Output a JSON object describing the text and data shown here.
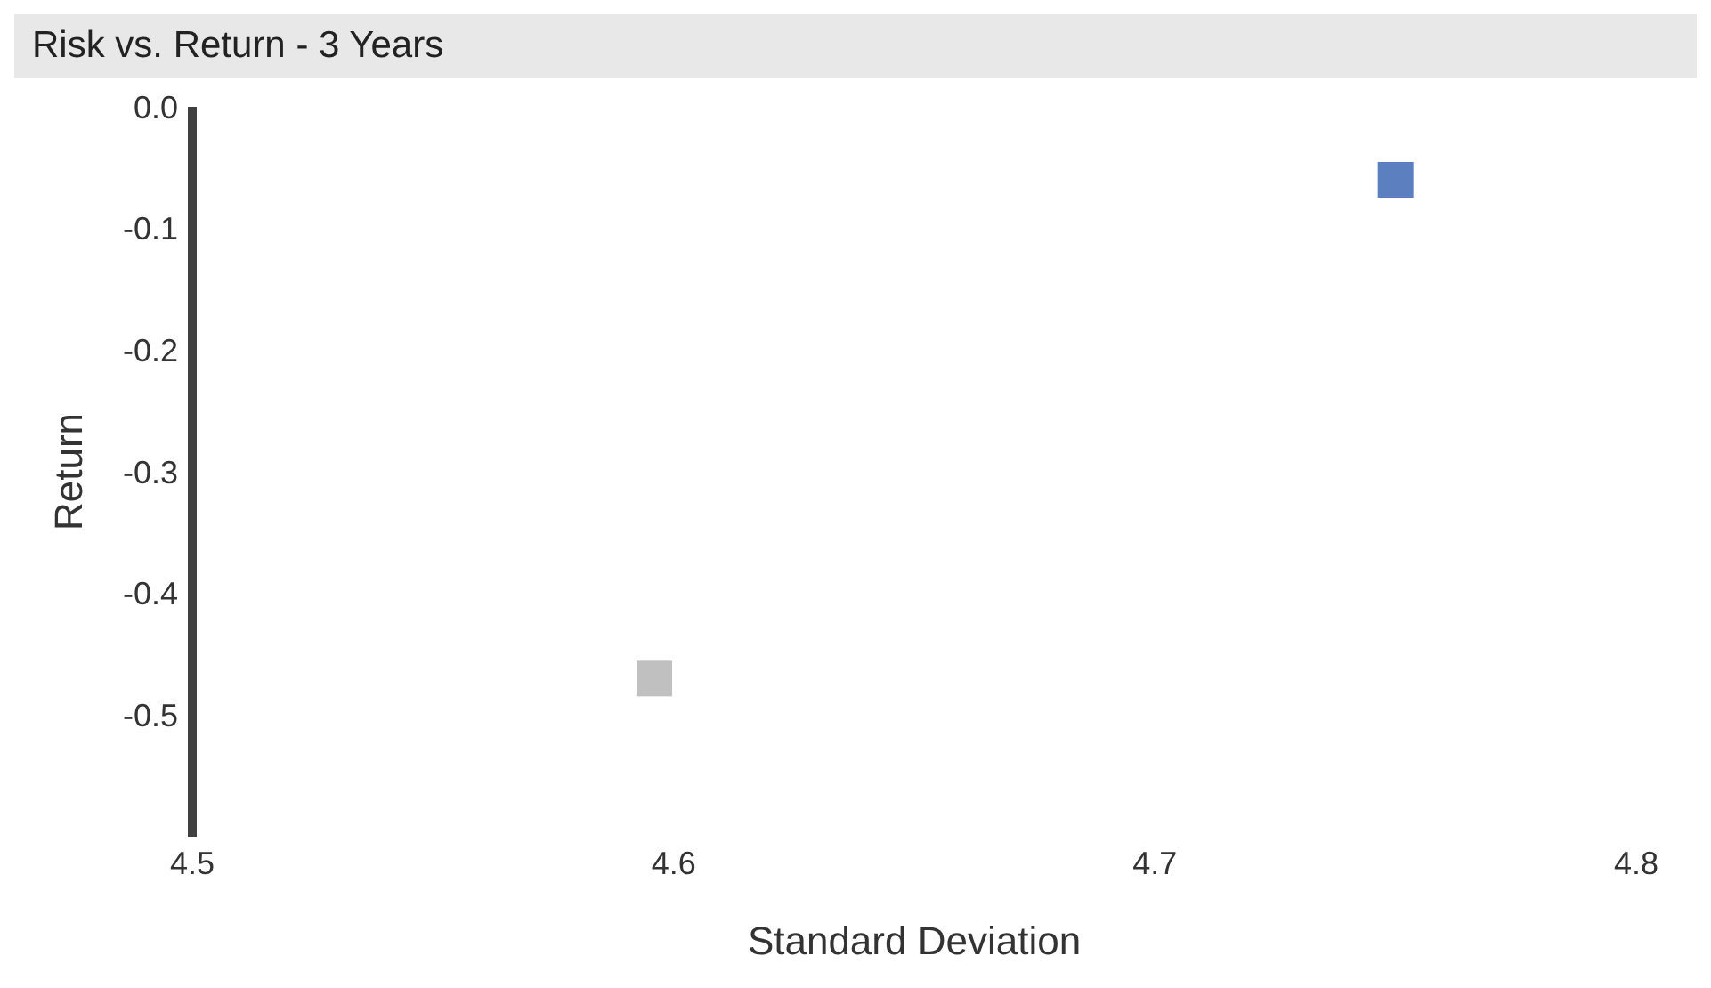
{
  "chart_data": {
    "type": "scatter",
    "title": "Risk vs. Return - 3 Years",
    "xlabel": "Standard Deviation",
    "ylabel": "Return",
    "marker": "square",
    "grid": false,
    "legend": false,
    "xlim": [
      4.5,
      4.8
    ],
    "xticks": [
      4.5,
      4.6,
      4.7,
      4.8
    ],
    "ylim": [
      -0.6,
      0
    ],
    "yticks": [
      {
        "value": 0,
        "label": "0.0"
      },
      -0.1,
      -0.2,
      -0.3,
      -0.4,
      -0.5
    ],
    "series": [
      {
        "color": "#5b7fbf",
        "x": [
          4.75
        ],
        "values": [
          -0.06
        ]
      },
      {
        "color": "#c0c0c0",
        "x": [
          4.596
        ],
        "values": [
          -0.47
        ]
      }
    ]
  }
}
